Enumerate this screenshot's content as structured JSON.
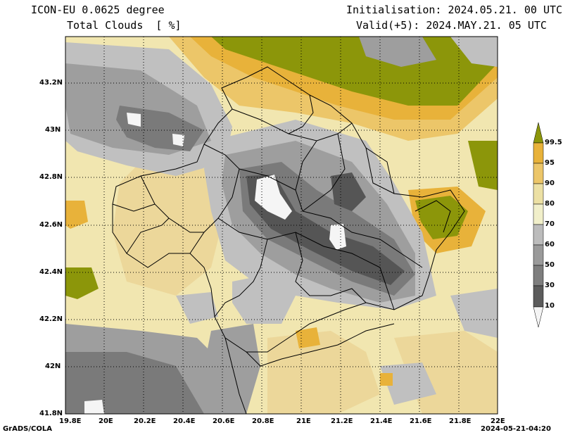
{
  "header": {
    "model": "ICON-EU 0.0625 degree",
    "variable": "Total Clouds  [ %]",
    "init": "Initialisation: 2024.05.21. 00 UTC",
    "valid": "Valid(+5): 2024.MAY.21. 05 UTC"
  },
  "footer": {
    "left": "GrADS/COLA",
    "right": "2024-05-21-04:20"
  },
  "axes": {
    "lon_ticks": [
      "19.8E",
      "20E",
      "20.2E",
      "20.4E",
      "20.6E",
      "20.8E",
      "21E",
      "21.2E",
      "21.4E",
      "21.6E",
      "21.8E",
      "22E"
    ],
    "lat_ticks": [
      "43.2N",
      "43N",
      "42.8N",
      "42.6N",
      "42.4N",
      "42.2N",
      "42N",
      "41.8N"
    ]
  },
  "legend": {
    "labels": [
      "99.5",
      "95",
      "90",
      "80",
      "70",
      "60",
      "50",
      "30",
      "10"
    ],
    "colors": [
      "#8c960a",
      "#e8b23a",
      "#ecc669",
      "#ece0a4",
      "#f1efca",
      "#bcbcbc",
      "#9a9a9a",
      "#7e7e7e",
      "#5c5c5c",
      "#f4f4f4"
    ]
  },
  "colors": {
    "olive": "#8c960a",
    "dark_yellow": "#e8b23a",
    "mid_yellow": "#ecc669",
    "light_yellow": "#f1e6b0",
    "pale": "#f3f0cf",
    "light_grey": "#c0c0c0",
    "mid_grey": "#9e9e9e",
    "dark_grey": "#7a7a7a",
    "darkest_grey": "#555555",
    "white": "#f5f5f5"
  }
}
